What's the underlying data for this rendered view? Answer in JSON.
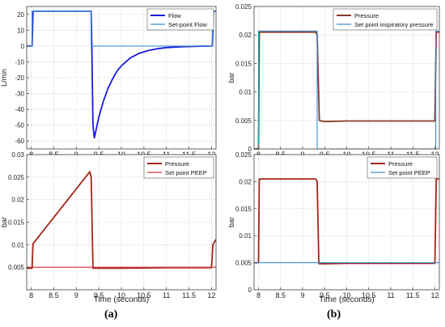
{
  "panel_labels": [
    "(a)",
    "(b)"
  ],
  "chart_data": [
    {
      "type": "line",
      "panel": "(a) top",
      "xlabel": "",
      "ylabel": "L/min",
      "xlim": [
        7.9,
        12.1
      ],
      "ylim": [
        -65,
        25
      ],
      "xticks": [
        8,
        8.5,
        9,
        9.5,
        10,
        10.5,
        11,
        11.5,
        12
      ],
      "yticks": [
        20,
        10,
        0,
        -10,
        -20,
        -30,
        -40,
        -50,
        -60
      ],
      "grid": true,
      "legend_position": "top-right",
      "series": [
        {
          "name": "Flow",
          "color": "#1a1adc",
          "points": [
            [
              7.9,
              0
            ],
            [
              8.02,
              0
            ],
            [
              8.04,
              22
            ],
            [
              9.33,
              22
            ],
            [
              9.345,
              0
            ],
            [
              9.37,
              -50
            ],
            [
              9.4,
              -58
            ],
            [
              9.5,
              -45
            ],
            [
              9.6,
              -35
            ],
            [
              9.7,
              -27
            ],
            [
              9.8,
              -21
            ],
            [
              9.9,
              -16
            ],
            [
              10,
              -12.5
            ],
            [
              10.2,
              -7.5
            ],
            [
              10.4,
              -4.5
            ],
            [
              10.6,
              -2.8
            ],
            [
              10.8,
              -1.7
            ],
            [
              11,
              -1
            ],
            [
              11.3,
              -0.5
            ],
            [
              11.6,
              -0.2
            ],
            [
              12.02,
              0
            ],
            [
              12.04,
              22
            ],
            [
              12.1,
              22
            ]
          ]
        },
        {
          "name": "Set-point Flow",
          "color": "#3a8fd0",
          "points": [
            [
              7.9,
              0
            ],
            [
              8.02,
              0
            ],
            [
              8.02,
              22
            ],
            [
              9.33,
              22
            ],
            [
              9.33,
              0
            ],
            [
              12.02,
              0
            ],
            [
              12.02,
              22
            ],
            [
              12.1,
              22
            ]
          ]
        }
      ]
    },
    {
      "type": "line",
      "panel": "(a) bottom",
      "xlabel": "Time (seconds)",
      "ylabel": "bar",
      "xlim": [
        7.9,
        12.1
      ],
      "ylim": [
        0.0,
        0.03
      ],
      "xticks": [
        8,
        8.5,
        9,
        9.5,
        10,
        10.5,
        11,
        11.5,
        12
      ],
      "yticks": [
        0.005,
        0.01,
        0.015,
        0.02,
        0.025,
        0.03
      ],
      "grid": true,
      "legend_position": "top-right",
      "series": [
        {
          "name": "Pressure",
          "color": "#a32618",
          "points": [
            [
              7.9,
              0.0048
            ],
            [
              8.02,
              0.0048
            ],
            [
              8.04,
              0.0102
            ],
            [
              9.3,
              0.0262
            ],
            [
              9.33,
              0.025
            ],
            [
              9.37,
              0.0048
            ],
            [
              9.5,
              0.0048
            ],
            [
              10,
              0.0048
            ],
            [
              11,
              0.0049
            ],
            [
              12,
              0.0049
            ],
            [
              12.03,
              0.01
            ],
            [
              12.1,
              0.0112
            ]
          ]
        },
        {
          "name": "Set point PEEP",
          "color": "#d0313b",
          "points": [
            [
              7.9,
              0.005
            ],
            [
              12.1,
              0.005
            ]
          ]
        }
      ]
    },
    {
      "type": "line",
      "panel": "(b) top",
      "xlabel": "",
      "ylabel": "bar",
      "xlim": [
        7.9,
        12.1
      ],
      "ylim": [
        0,
        0.025
      ],
      "xticks": [
        8,
        8.5,
        9,
        9.5,
        10,
        10.5,
        11,
        11.5,
        12
      ],
      "yticks": [
        0,
        0.005,
        0.01,
        0.015,
        0.02,
        0.025
      ],
      "grid": true,
      "legend_position": "top-right",
      "series": [
        {
          "name": "Pressure",
          "color": "#8b3a2a",
          "points": [
            [
              7.9,
              0.0
            ],
            [
              8.0,
              0.0
            ],
            [
              8.02,
              0.0205
            ],
            [
              9.3,
              0.0205
            ],
            [
              9.33,
              0.02
            ],
            [
              9.38,
              0.005
            ],
            [
              9.5,
              0.0048
            ],
            [
              10,
              0.0049
            ],
            [
              11,
              0.0049
            ],
            [
              12,
              0.0049
            ],
            [
              12.03,
              0.0205
            ],
            [
              12.1,
              0.0205
            ]
          ]
        },
        {
          "name": "Set point inspiratory pressure",
          "color": "#3a8fd0",
          "points": [
            [
              7.9,
              0
            ],
            [
              8.0,
              0
            ],
            [
              8.0,
              0.0207
            ],
            [
              9.33,
              0.0207
            ],
            [
              9.33,
              0
            ],
            [
              12.02,
              0
            ],
            [
              12.02,
              0.0207
            ],
            [
              12.1,
              0.0207
            ]
          ]
        }
      ]
    },
    {
      "type": "line",
      "panel": "(b) bottom",
      "xlabel": "Time (seconds)",
      "ylabel": "bar",
      "xlim": [
        7.9,
        12.1
      ],
      "ylim": [
        0,
        0.025
      ],
      "xticks": [
        8,
        8.5,
        9,
        9.5,
        10,
        10.5,
        11,
        11.5,
        12
      ],
      "yticks": [
        0,
        0.005,
        0.01,
        0.015,
        0.02,
        0.025
      ],
      "grid": true,
      "legend_position": "top-right",
      "series": [
        {
          "name": "Pressure",
          "color": "#a32618",
          "points": [
            [
              7.9,
              0.005
            ],
            [
              8.0,
              0.005
            ],
            [
              8.02,
              0.0205
            ],
            [
              9.3,
              0.0205
            ],
            [
              9.33,
              0.02
            ],
            [
              9.37,
              0.0048
            ],
            [
              9.5,
              0.0048
            ],
            [
              10,
              0.0049
            ],
            [
              11,
              0.0049
            ],
            [
              12,
              0.0049
            ],
            [
              12.03,
              0.0205
            ],
            [
              12.1,
              0.0205
            ]
          ]
        },
        {
          "name": "Set point PEEP",
          "color": "#3a8fd0",
          "points": [
            [
              7.9,
              0.005
            ],
            [
              12.1,
              0.005
            ]
          ]
        }
      ]
    }
  ]
}
